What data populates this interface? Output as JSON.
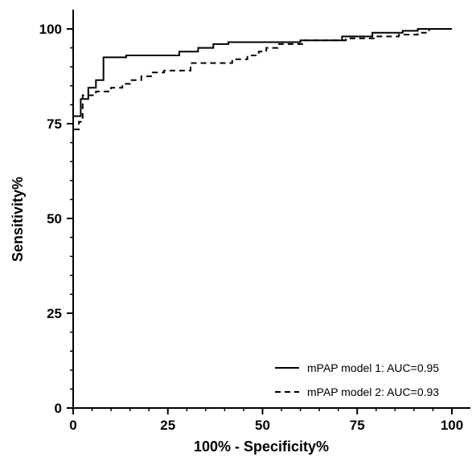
{
  "chart_data": {
    "type": "line",
    "title": "",
    "xlabel": "100% - Specificity%",
    "ylabel": "Sensitivity%",
    "xlim": [
      0,
      100
    ],
    "ylim": [
      0,
      100
    ],
    "x_ticks": [
      "0",
      "25",
      "50",
      "75",
      "100"
    ],
    "y_ticks": [
      "0",
      "25",
      "50",
      "75",
      "100"
    ],
    "grid": false,
    "legend_position": "bottom-right",
    "series": [
      {
        "name": "mPAP model 1: AUC=0.95",
        "style": "solid",
        "color": "#000000",
        "points": [
          [
            0,
            0
          ],
          [
            0,
            77
          ],
          [
            2,
            77
          ],
          [
            2,
            81.5
          ],
          [
            4,
            81.5
          ],
          [
            4,
            84.5
          ],
          [
            6,
            84.5
          ],
          [
            6,
            86.5
          ],
          [
            8,
            86.5
          ],
          [
            8,
            92.5
          ],
          [
            14,
            92.5
          ],
          [
            14,
            93
          ],
          [
            28,
            93
          ],
          [
            28,
            94
          ],
          [
            33,
            94
          ],
          [
            33,
            95
          ],
          [
            37,
            95
          ],
          [
            37,
            96
          ],
          [
            41,
            96
          ],
          [
            41,
            96.5
          ],
          [
            52,
            96.5
          ],
          [
            60,
            96.5
          ],
          [
            60,
            97
          ],
          [
            71,
            97
          ],
          [
            71,
            98
          ],
          [
            79,
            98
          ],
          [
            79,
            99
          ],
          [
            87,
            99
          ],
          [
            87,
            99.5
          ],
          [
            91,
            99.5
          ],
          [
            91,
            100
          ],
          [
            100,
            100
          ]
        ]
      },
      {
        "name": "mPAP model 2: AUC=0.93",
        "style": "dashed",
        "color": "#000000",
        "points": [
          [
            0,
            0
          ],
          [
            0,
            73.5
          ],
          [
            1.5,
            73.5
          ],
          [
            1.5,
            75.5
          ],
          [
            2.5,
            75.5
          ],
          [
            2.5,
            82.5
          ],
          [
            6,
            82.5
          ],
          [
            6,
            83.5
          ],
          [
            10,
            83.5
          ],
          [
            10,
            84.5
          ],
          [
            13,
            84.5
          ],
          [
            13,
            85.5
          ],
          [
            15,
            85.5
          ],
          [
            15,
            86.5
          ],
          [
            18,
            86.5
          ],
          [
            18,
            87.5
          ],
          [
            21,
            87.5
          ],
          [
            21,
            88.5
          ],
          [
            24,
            88.5
          ],
          [
            24,
            89
          ],
          [
            31,
            89
          ],
          [
            31,
            91
          ],
          [
            42,
            91
          ],
          [
            42,
            92
          ],
          [
            46,
            92
          ],
          [
            46,
            93
          ],
          [
            49,
            93
          ],
          [
            49,
            94
          ],
          [
            51,
            94
          ],
          [
            51,
            95
          ],
          [
            54,
            95
          ],
          [
            54,
            96
          ],
          [
            61,
            96
          ],
          [
            61,
            97
          ],
          [
            72,
            97
          ],
          [
            72,
            97.5
          ],
          [
            80,
            97.5
          ],
          [
            80,
            98
          ],
          [
            86,
            98
          ],
          [
            86,
            98.5
          ],
          [
            91,
            98.5
          ],
          [
            91,
            99
          ],
          [
            94,
            99
          ],
          [
            94,
            100
          ],
          [
            100,
            100
          ]
        ]
      }
    ]
  }
}
